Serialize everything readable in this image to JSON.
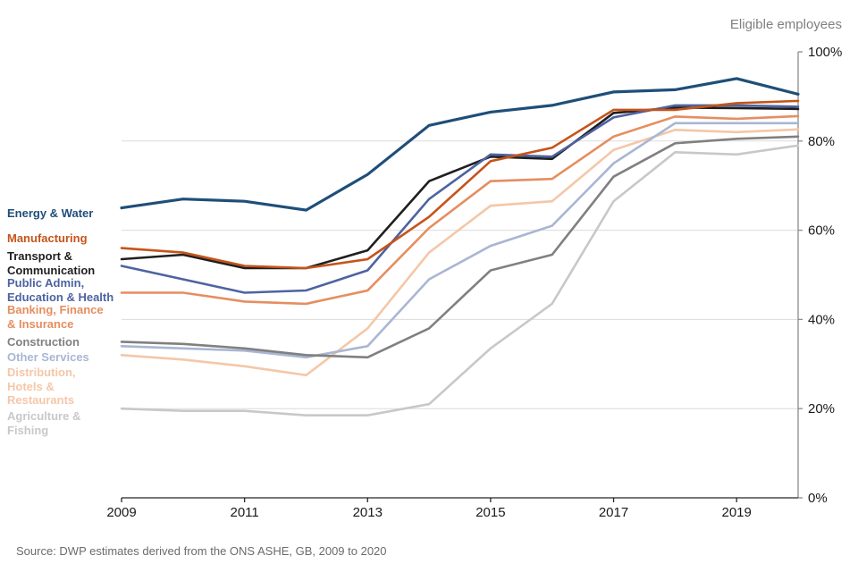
{
  "source_note": "Source: DWP estimates derived from the ONS ASHE, GB, 2009 to 2020",
  "chart_data": {
    "type": "line",
    "title": "",
    "ylabel": "Eligible employees",
    "xlabel": "",
    "x": [
      2009,
      2010,
      2011,
      2012,
      2013,
      2014,
      2015,
      2016,
      2017,
      2018,
      2019,
      2020
    ],
    "x_tick_labels": [
      "2009",
      "2011",
      "2013",
      "2015",
      "2017",
      "2019"
    ],
    "y_ticks": [
      0,
      20,
      40,
      60,
      80,
      100
    ],
    "y_tick_suffix": "%",
    "ylim": [
      0,
      100
    ],
    "grid": "horizontal",
    "legend_position": "left",
    "series": [
      {
        "name": "Energy & Water",
        "legend_label": "Energy & Water",
        "color": "#1F4E79",
        "values": [
          65,
          67,
          66.5,
          64.5,
          72.5,
          83.5,
          86.5,
          88,
          91,
          91.5,
          94,
          90.5
        ]
      },
      {
        "name": "Manufacturing",
        "legend_label": "Manufacturing",
        "color": "#C5541A",
        "values": [
          56,
          55,
          52,
          51.5,
          53.5,
          63,
          75.5,
          78.5,
          87,
          87,
          88.5,
          89
        ]
      },
      {
        "name": "Transport & Communication",
        "legend_label": "Transport &\nCommunication",
        "color": "#1f1f1f",
        "values": [
          53.5,
          54.5,
          51.5,
          51.5,
          55.5,
          71,
          76.5,
          76,
          86.3,
          87.5,
          87.4,
          87.2
        ]
      },
      {
        "name": "Public Admin, Education & Health",
        "legend_label": "Public Admin,\nEducation & Health",
        "color": "#4E63A0",
        "values": [
          52,
          49,
          46,
          46.5,
          51,
          67,
          77,
          76.5,
          85.3,
          88,
          88,
          87.7
        ]
      },
      {
        "name": "Banking, Finance & Insurance",
        "legend_label": "Banking, Finance\n& Insurance",
        "color": "#E58E60",
        "values": [
          46,
          46,
          44,
          43.5,
          46.5,
          60.5,
          71,
          71.5,
          81,
          85.5,
          85,
          85.6
        ]
      },
      {
        "name": "Construction",
        "legend_label": "Construction",
        "color": "#808080",
        "values": [
          35,
          34.5,
          33.5,
          32,
          31.5,
          38,
          51,
          54.5,
          72,
          79.5,
          80.5,
          81
        ]
      },
      {
        "name": "Other Services",
        "legend_label": "Other Services",
        "color": "#A9B6D3",
        "values": [
          34,
          33.5,
          33,
          31.5,
          34,
          49,
          56.5,
          61,
          75,
          84,
          84,
          84
        ]
      },
      {
        "name": "Distribution, Hotels & Restaurants",
        "legend_label": "Distribution,\nHotels &\nRestaurants",
        "color": "#F4C7A8",
        "values": [
          32,
          31,
          29.5,
          27.5,
          38,
          55,
          65.5,
          66.5,
          78,
          82.5,
          82,
          82.6
        ]
      },
      {
        "name": "Agriculture & Fishing",
        "legend_label": "Agriculture &\nFishing",
        "color": "#C8C8C8",
        "values": [
          20,
          19.5,
          19.5,
          18.5,
          18.5,
          21,
          33.5,
          43.5,
          66.5,
          77.5,
          77,
          79
        ]
      }
    ]
  }
}
